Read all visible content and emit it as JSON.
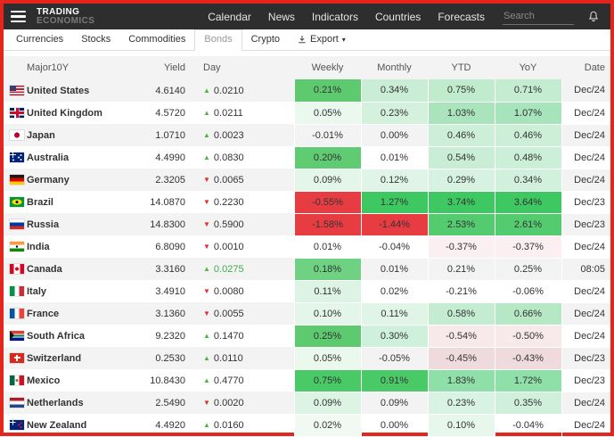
{
  "header": {
    "logo_line1": "TRADING",
    "logo_line2": "ECONOMICS",
    "nav": [
      "Calendar",
      "News",
      "Indicators",
      "Countries",
      "Forecasts"
    ],
    "search_placeholder": "Search"
  },
  "tabs": {
    "items": [
      {
        "label": "Currencies",
        "active": false
      },
      {
        "label": "Stocks",
        "active": false
      },
      {
        "label": "Commodities",
        "active": false
      },
      {
        "label": "Bonds",
        "active": true
      },
      {
        "label": "Crypto",
        "active": false
      }
    ],
    "export_label": "Export"
  },
  "colors": {
    "accent_border": "#E3251E",
    "topbar_bg": "#2E2E2E",
    "strong_green": "#4AC967",
    "strong_red": "#E83C43",
    "up_triangle": "#56B04B",
    "down_triangle": "#E02F2F"
  },
  "table": {
    "columns": [
      "Major10Y",
      "Yield",
      "Day",
      "Weekly",
      "Monthly",
      "YTD",
      "YoY",
      "Date"
    ],
    "rows": [
      {
        "country": "United States",
        "flag": "us",
        "yield": "4.6140",
        "dir": "up",
        "day": "0.0210",
        "day_color": "#333333",
        "weekly": {
          "v": "0.21%",
          "bg": "#5DCA70"
        },
        "monthly": {
          "v": "0.34%",
          "bg": "#C9EDD5"
        },
        "ytd": {
          "v": "0.75%",
          "bg": "#C0EBCD"
        },
        "yoy": {
          "v": "0.71%",
          "bg": "#C3ECD0"
        },
        "date": "Dec/24"
      },
      {
        "country": "United Kingdom",
        "flag": "gb",
        "yield": "4.5720",
        "dir": "up",
        "day": "0.0211",
        "day_color": "#333333",
        "weekly": {
          "v": "0.05%",
          "bg": "#EAF8EE"
        },
        "monthly": {
          "v": "0.23%",
          "bg": "#D4F1DE"
        },
        "ytd": {
          "v": "1.03%",
          "bg": "#A9E4BD"
        },
        "yoy": {
          "v": "1.07%",
          "bg": "#A7E4BC"
        },
        "date": "Dec/24"
      },
      {
        "country": "Japan",
        "flag": "jp",
        "yield": "1.0710",
        "dir": "up",
        "day": "0.0023",
        "day_color": "#333333",
        "weekly": {
          "v": "-0.01%",
          "bg": null
        },
        "monthly": {
          "v": "0.00%",
          "bg": null
        },
        "ytd": {
          "v": "0.46%",
          "bg": "#CDEFD8"
        },
        "yoy": {
          "v": "0.46%",
          "bg": "#CDEFD8"
        },
        "date": "Dec/24"
      },
      {
        "country": "Australia",
        "flag": "au",
        "yield": "4.4990",
        "dir": "up",
        "day": "0.0830",
        "day_color": "#333333",
        "weekly": {
          "v": "0.20%",
          "bg": "#5FCB73"
        },
        "monthly": {
          "v": "0.01%",
          "bg": null
        },
        "ytd": {
          "v": "0.54%",
          "bg": "#C9EED5"
        },
        "yoy": {
          "v": "0.48%",
          "bg": "#CCEFD7"
        },
        "date": "Dec/24"
      },
      {
        "country": "Germany",
        "flag": "de",
        "yield": "2.3205",
        "dir": "down",
        "day": "0.0065",
        "day_color": "#333333",
        "weekly": {
          "v": "0.09%",
          "bg": "#E4F6EA"
        },
        "monthly": {
          "v": "0.12%",
          "bg": "#E0F5E7"
        },
        "ytd": {
          "v": "0.29%",
          "bg": "#D7F2E0"
        },
        "yoy": {
          "v": "0.34%",
          "bg": "#D2F1DC"
        },
        "date": "Dec/24"
      },
      {
        "country": "Brazil",
        "flag": "br",
        "yield": "14.0870",
        "dir": "down",
        "day": "0.2230",
        "day_color": "#333333",
        "weekly": {
          "v": "-0.55%",
          "bg": "#E83C43"
        },
        "monthly": {
          "v": "1.27%",
          "bg": "#3EC862"
        },
        "ytd": {
          "v": "3.74%",
          "bg": "#3EC862"
        },
        "yoy": {
          "v": "3.64%",
          "bg": "#3EC862"
        },
        "date": "Dec/23"
      },
      {
        "country": "Russia",
        "flag": "ru",
        "yield": "14.8300",
        "dir": "down",
        "day": "0.5900",
        "day_color": "#333333",
        "weekly": {
          "v": "-1.58%",
          "bg": "#E83C43"
        },
        "monthly": {
          "v": "-1.44%",
          "bg": "#E83C43"
        },
        "ytd": {
          "v": "2.53%",
          "bg": "#55CB70"
        },
        "yoy": {
          "v": "2.61%",
          "bg": "#55CB70"
        },
        "date": "Dec/23"
      },
      {
        "country": "India",
        "flag": "in",
        "yield": "6.8090",
        "dir": "down",
        "day": "0.0010",
        "day_color": "#333333",
        "weekly": {
          "v": "0.01%",
          "bg": null
        },
        "monthly": {
          "v": "-0.04%",
          "bg": null
        },
        "ytd": {
          "v": "-0.37%",
          "bg": "#FBEFF1"
        },
        "yoy": {
          "v": "-0.37%",
          "bg": "#FBEFF1"
        },
        "date": "Dec/24"
      },
      {
        "country": "Canada",
        "flag": "ca",
        "yield": "3.3160",
        "dir": "up",
        "day": "0.0275",
        "day_color": "#3FAE4E",
        "weekly": {
          "v": "0.18%",
          "bg": "#6FD283"
        },
        "monthly": {
          "v": "0.01%",
          "bg": null
        },
        "ytd": {
          "v": "0.21%",
          "bg": null
        },
        "yoy": {
          "v": "0.25%",
          "bg": null
        },
        "date": "08:05"
      },
      {
        "country": "Italy",
        "flag": "it",
        "yield": "3.4910",
        "dir": "down",
        "day": "0.0080",
        "day_color": "#333333",
        "weekly": {
          "v": "0.11%",
          "bg": "#DDF4E4"
        },
        "monthly": {
          "v": "0.02%",
          "bg": null
        },
        "ytd": {
          "v": "-0.21%",
          "bg": null
        },
        "yoy": {
          "v": "-0.06%",
          "bg": null
        },
        "date": "Dec/24"
      },
      {
        "country": "France",
        "flag": "fr",
        "yield": "3.1360",
        "dir": "down",
        "day": "0.0055",
        "day_color": "#333333",
        "weekly": {
          "v": "0.10%",
          "bg": "#E3F6E9"
        },
        "monthly": {
          "v": "0.11%",
          "bg": "#E1F5E7"
        },
        "ytd": {
          "v": "0.58%",
          "bg": "#C3ECD0"
        },
        "yoy": {
          "v": "0.66%",
          "bg": "#B7E8C6"
        },
        "date": "Dec/24"
      },
      {
        "country": "South Africa",
        "flag": "za",
        "yield": "9.2320",
        "dir": "up",
        "day": "0.1470",
        "day_color": "#333333",
        "weekly": {
          "v": "0.25%",
          "bg": "#5DCA70"
        },
        "monthly": {
          "v": "0.30%",
          "bg": "#CFF0DA"
        },
        "ytd": {
          "v": "-0.54%",
          "bg": "#F8E9EB"
        },
        "yoy": {
          "v": "-0.50%",
          "bg": "#F8E9EB"
        },
        "date": "Dec/24"
      },
      {
        "country": "Switzerland",
        "flag": "ch",
        "yield": "0.2530",
        "dir": "up",
        "day": "0.0110",
        "day_color": "#333333",
        "weekly": {
          "v": "0.05%",
          "bg": "#EAF8EE"
        },
        "monthly": {
          "v": "-0.05%",
          "bg": null
        },
        "ytd": {
          "v": "-0.45%",
          "bg": "#EFDBDE"
        },
        "yoy": {
          "v": "-0.43%",
          "bg": "#EFDBDE"
        },
        "date": "Dec/23"
      },
      {
        "country": "Mexico",
        "flag": "mx",
        "yield": "10.8430",
        "dir": "up",
        "day": "0.4770",
        "day_color": "#333333",
        "weekly": {
          "v": "0.75%",
          "bg": "#4AC967"
        },
        "monthly": {
          "v": "0.91%",
          "bg": "#4AC967"
        },
        "ytd": {
          "v": "1.83%",
          "bg": "#8FDFA9"
        },
        "yoy": {
          "v": "1.72%",
          "bg": "#8FDFA9"
        },
        "date": "Dec/23"
      },
      {
        "country": "Netherlands",
        "flag": "nl",
        "yield": "2.5490",
        "dir": "down",
        "day": "0.0020",
        "day_color": "#333333",
        "weekly": {
          "v": "0.09%",
          "bg": "#DDF4E4"
        },
        "monthly": {
          "v": "0.09%",
          "bg": null
        },
        "ytd": {
          "v": "0.23%",
          "bg": "#D8F3E1"
        },
        "yoy": {
          "v": "0.35%",
          "bg": "#D1F0DB"
        },
        "date": "Dec/24"
      },
      {
        "country": "New Zealand",
        "flag": "nz",
        "yield": "4.4920",
        "dir": "up",
        "day": "0.0160",
        "day_color": "#333333",
        "weekly": {
          "v": "0.02%",
          "bg": "#F0FAF3"
        },
        "monthly": {
          "v": "0.00%",
          "bg": null
        },
        "ytd": {
          "v": "0.10%",
          "bg": "#E7F7EC"
        },
        "yoy": {
          "v": "-0.04%",
          "bg": null
        },
        "date": "Dec/24"
      }
    ]
  }
}
